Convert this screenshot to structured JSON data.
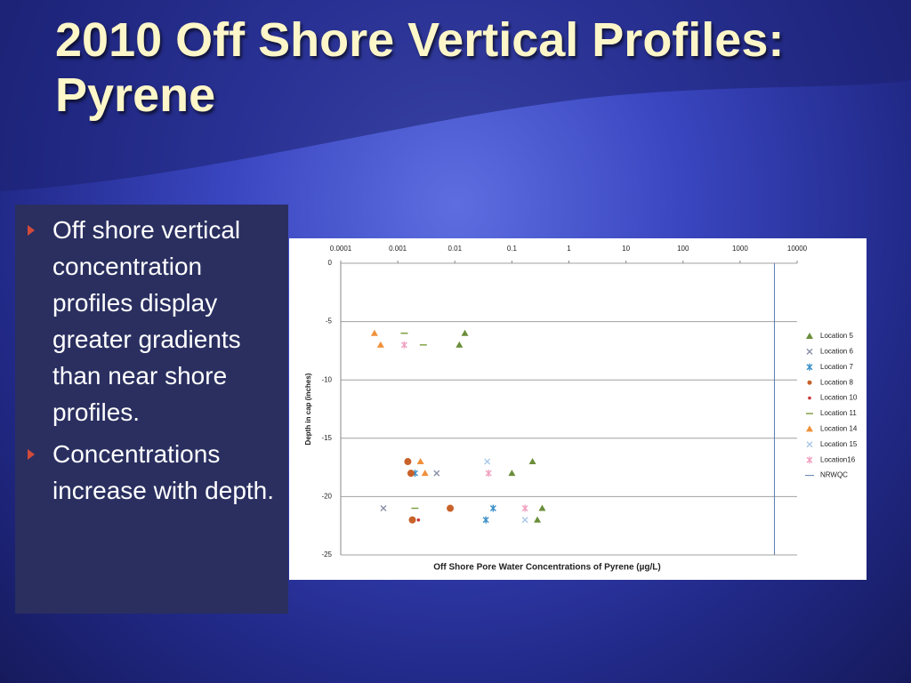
{
  "title": "2010 Off Shore Vertical Profiles: Pyrene",
  "bullets": [
    "Off shore vertical concentration profiles display greater gradients than near shore profiles.",
    "Concentrations increase with depth."
  ],
  "chart_data": {
    "type": "scatter",
    "x_label": "Off Shore Pore Water Concentrations of Pyrene (µg/L)",
    "y_label": "Depth in cap (inches)",
    "x_log": true,
    "x_axis_position": "top",
    "grid": true,
    "legend": "right",
    "xlim": [
      0.0001,
      10000
    ],
    "xticks": [
      0.0001,
      0.001,
      0.01,
      0.1,
      1,
      10,
      100,
      1000,
      10000
    ],
    "ylim": [
      -25,
      0
    ],
    "yticks": [
      0,
      -5,
      -10,
      -15,
      -20,
      -25
    ],
    "series": [
      {
        "name": "Location 5",
        "color": "#6b8e3a",
        "marker": "triangle",
        "x": [
          0.015,
          0.012,
          0.23,
          0.1,
          0.34,
          0.28
        ],
        "values": [
          -6,
          -7,
          -17,
          -18,
          -21,
          -22
        ]
      },
      {
        "name": "Location 6",
        "color": "#8a8fa8",
        "marker": "x",
        "x": [
          0.00056,
          0.0048
        ],
        "values": [
          -21,
          -18
        ]
      },
      {
        "name": "Location 7",
        "color": "#3a8fc8",
        "marker": "asterisk",
        "x": [
          0.047,
          0.035,
          0.002
        ],
        "values": [
          -21,
          -22,
          -18
        ]
      },
      {
        "name": "Location 8",
        "color": "#c8622a",
        "marker": "circle",
        "x": [
          0.0015,
          0.0017,
          0.0083,
          0.0018
        ],
        "values": [
          -17,
          -18,
          -21,
          -22
        ]
      },
      {
        "name": "Location 10",
        "color": "#c83a3a",
        "marker": "dot",
        "x": [
          0.0023
        ],
        "values": [
          -22
        ]
      },
      {
        "name": "Location 11",
        "color": "#7a9a3a",
        "marker": "dash",
        "x": [
          0.0013,
          0.0028,
          0.002
        ],
        "values": [
          -6,
          -7,
          -21
        ]
      },
      {
        "name": "Location 14",
        "color": "#f0903a",
        "marker": "triangle",
        "x": [
          0.00039,
          0.0005,
          0.0025,
          0.003
        ],
        "values": [
          -6,
          -7,
          -17,
          -18
        ]
      },
      {
        "name": "Location 15",
        "color": "#a8c8e8",
        "marker": "x",
        "x": [
          0.17,
          0.037
        ],
        "values": [
          -22,
          -17
        ]
      },
      {
        "name": "Location16",
        "color": "#f0a0c0",
        "marker": "asterisk",
        "x": [
          0.0013,
          0.039,
          0.17
        ],
        "values": [
          -7,
          -18,
          -21
        ]
      },
      {
        "name": "NRWQC",
        "color": "#5a7fb0",
        "marker": "line",
        "x": [
          4000,
          4000
        ],
        "values": [
          0,
          -25
        ]
      }
    ]
  }
}
